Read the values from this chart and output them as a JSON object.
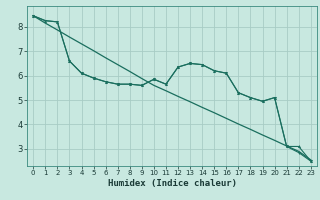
{
  "title": "",
  "xlabel": "Humidex (Indice chaleur)",
  "ylabel": "",
  "bg_color": "#c8e8e0",
  "grid_color": "#a8ccc5",
  "line_color": "#1a6e5e",
  "x_data": [
    0,
    1,
    2,
    3,
    4,
    5,
    6,
    7,
    8,
    9,
    10,
    11,
    12,
    13,
    14,
    15,
    16,
    17,
    18,
    19,
    20,
    21,
    22,
    23
  ],
  "y_line1": [
    8.45,
    8.25,
    8.2,
    6.6,
    6.1,
    5.9,
    5.75,
    5.65,
    5.65,
    5.6,
    5.85,
    5.65,
    6.35,
    6.5,
    6.45,
    6.2,
    6.1,
    5.3,
    5.1,
    4.95,
    5.1,
    3.1,
    2.85,
    2.5
  ],
  "y_line2": [
    8.45,
    8.25,
    8.2,
    6.6,
    6.1,
    5.9,
    5.75,
    5.65,
    5.65,
    5.6,
    5.85,
    5.65,
    6.35,
    6.5,
    6.45,
    6.2,
    6.1,
    5.3,
    5.1,
    4.95,
    5.1,
    3.1,
    3.1,
    2.5
  ],
  "y_regression": [
    8.45,
    8.15,
    7.87,
    7.58,
    7.3,
    7.02,
    6.73,
    6.45,
    6.17,
    5.88,
    5.6,
    5.38,
    5.15,
    4.93,
    4.7,
    4.48,
    4.25,
    4.02,
    3.8,
    3.57,
    3.35,
    3.12,
    2.9,
    2.55
  ],
  "ylim": [
    2.3,
    8.85
  ],
  "xlim": [
    -0.5,
    23.5
  ],
  "yticks": [
    3,
    4,
    5,
    6,
    7,
    8
  ],
  "xticks": [
    0,
    1,
    2,
    3,
    4,
    5,
    6,
    7,
    8,
    9,
    10,
    11,
    12,
    13,
    14,
    15,
    16,
    17,
    18,
    19,
    20,
    21,
    22,
    23
  ]
}
